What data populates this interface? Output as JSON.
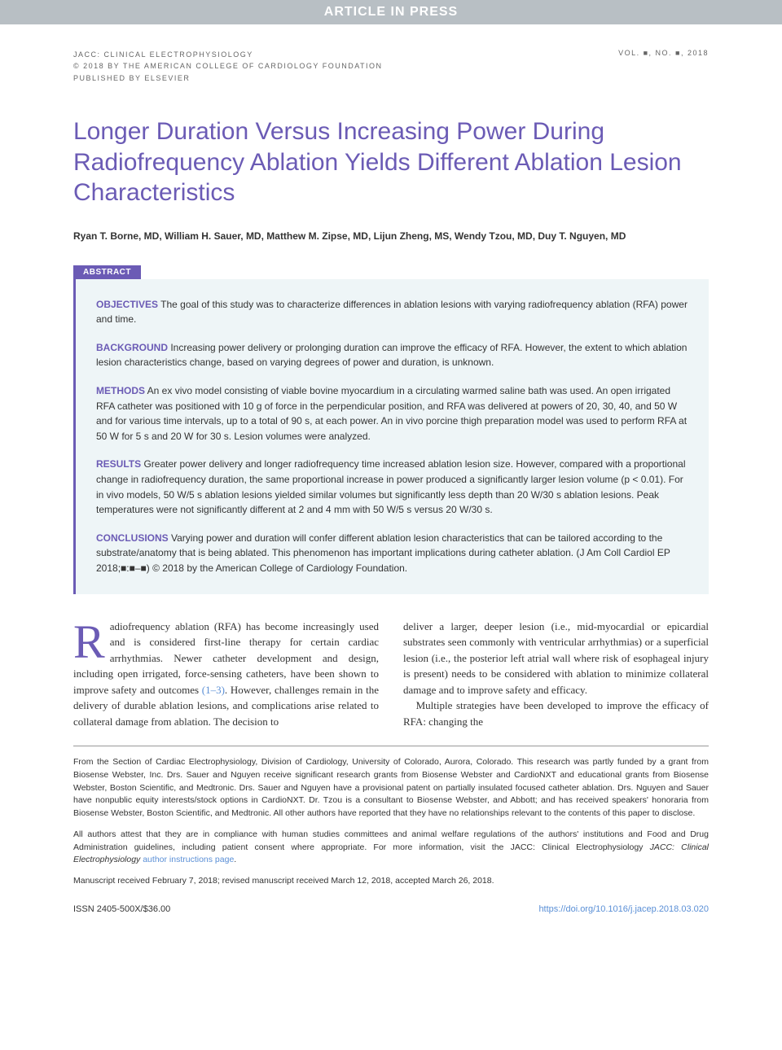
{
  "banner": "ARTICLE IN PRESS",
  "header": {
    "journal": "JACC: CLINICAL ELECTROPHYSIOLOGY",
    "copyright": "© 2018 BY THE AMERICAN COLLEGE OF CARDIOLOGY FOUNDATION",
    "publisher": "PUBLISHED BY ELSEVIER",
    "issue": "VOL. ■, NO. ■, 2018"
  },
  "title": "Longer Duration Versus Increasing Power During Radiofrequency Ablation Yields Different Ablation Lesion Characteristics",
  "authors": "Ryan T. Borne, MD, William H. Sauer, MD, Matthew M. Zipse, MD, Lijun Zheng, MS, Wendy Tzou, MD, Duy T. Nguyen, MD",
  "abstract": {
    "label": "ABSTRACT",
    "sections": [
      {
        "heading": "OBJECTIVES",
        "text": "The goal of this study was to characterize differences in ablation lesions with varying radiofrequency ablation (RFA) power and time."
      },
      {
        "heading": "BACKGROUND",
        "text": "Increasing power delivery or prolonging duration can improve the efficacy of RFA. However, the extent to which ablation lesion characteristics change, based on varying degrees of power and duration, is unknown."
      },
      {
        "heading": "METHODS",
        "text": "An ex vivo model consisting of viable bovine myocardium in a circulating warmed saline bath was used. An open irrigated RFA catheter was positioned with 10 g of force in the perpendicular position, and RFA was delivered at powers of 20, 30, 40, and 50 W and for various time intervals, up to a total of 90 s, at each power. An in vivo porcine thigh preparation model was used to perform RFA at 50 W for 5 s and 20 W for 30 s. Lesion volumes were analyzed."
      },
      {
        "heading": "RESULTS",
        "text": "Greater power delivery and longer radiofrequency time increased ablation lesion size. However, compared with a proportional change in radiofrequency duration, the same proportional increase in power produced a significantly larger lesion volume (p < 0.01). For in vivo models, 50 W/5 s ablation lesions yielded similar volumes but significantly less depth than 20 W/30 s ablation lesions. Peak temperatures were not significantly different at 2 and 4 mm with 50 W/5 s versus 20 W/30 s."
      },
      {
        "heading": "CONCLUSIONS",
        "text": "Varying power and duration will confer different ablation lesion characteristics that can be tailored according to the substrate/anatomy that is being ablated. This phenomenon has important implications during catheter ablation. (J Am Coll Cardiol EP 2018;■:■–■) © 2018 by the American College of Cardiology Foundation."
      }
    ]
  },
  "body": {
    "col1_dropcap": "R",
    "col1_first": "adiofrequency ablation (RFA) has become increasingly used and is considered first-line therapy for certain cardiac arrhythmias. Newer catheter development and design, including open irrigated, force-sensing catheters, have been shown to improve safety and outcomes ",
    "col1_ref": "(1–3)",
    "col1_rest": ". However, challenges remain in the delivery of durable ablation lesions, and complications arise related to collateral damage from ablation. The decision to",
    "col2_p1": "deliver a larger, deeper lesion (i.e., mid-myocardial or epicardial substrates seen commonly with ventricular arrhythmias) or a superficial lesion (i.e., the posterior left atrial wall where risk of esophageal injury is present) needs to be considered with ablation to minimize collateral damage and to improve safety and efficacy.",
    "col2_p2": "Multiple strategies have been developed to improve the efficacy of RFA: changing the"
  },
  "footnotes": {
    "affiliation": "From the Section of Cardiac Electrophysiology, Division of Cardiology, University of Colorado, Aurora, Colorado. This research was partly funded by a grant from Biosense Webster, Inc. Drs. Sauer and Nguyen receive significant research grants from Biosense Webster and CardioNXT and educational grants from Biosense Webster, Boston Scientific, and Medtronic. Drs. Sauer and Nguyen have a provisional patent on partially insulated focused catheter ablation. Drs. Nguyen and Sauer have nonpublic equity interests/stock options in CardioNXT. Dr. Tzou is a consultant to Biosense Webster, and Abbott; and has received speakers' honoraria from Biosense Webster, Boston Scientific, and Medtronic. All other authors have reported that they have no relationships relevant to the contents of this paper to disclose.",
    "compliance": "All authors attest that they are in compliance with human studies committees and animal welfare regulations of the authors' institutions and Food and Drug Administration guidelines, including patient consent where appropriate. For more information, visit the JACC: Clinical Electrophysiology ",
    "compliance_link": "author instructions page",
    "compliance_end": ".",
    "manuscript": "Manuscript received February 7, 2018; revised manuscript received March 12, 2018, accepted March 26, 2018."
  },
  "footer": {
    "issn": "ISSN 2405-500X/$36.00",
    "doi": "https://doi.org/10.1016/j.jacep.2018.03.020"
  },
  "colors": {
    "banner_bg": "#b8bfc4",
    "accent": "#6b5bb5",
    "abstract_bg": "#eef5f7",
    "link": "#5a8fd6",
    "text": "#333333",
    "meta_text": "#666666"
  }
}
